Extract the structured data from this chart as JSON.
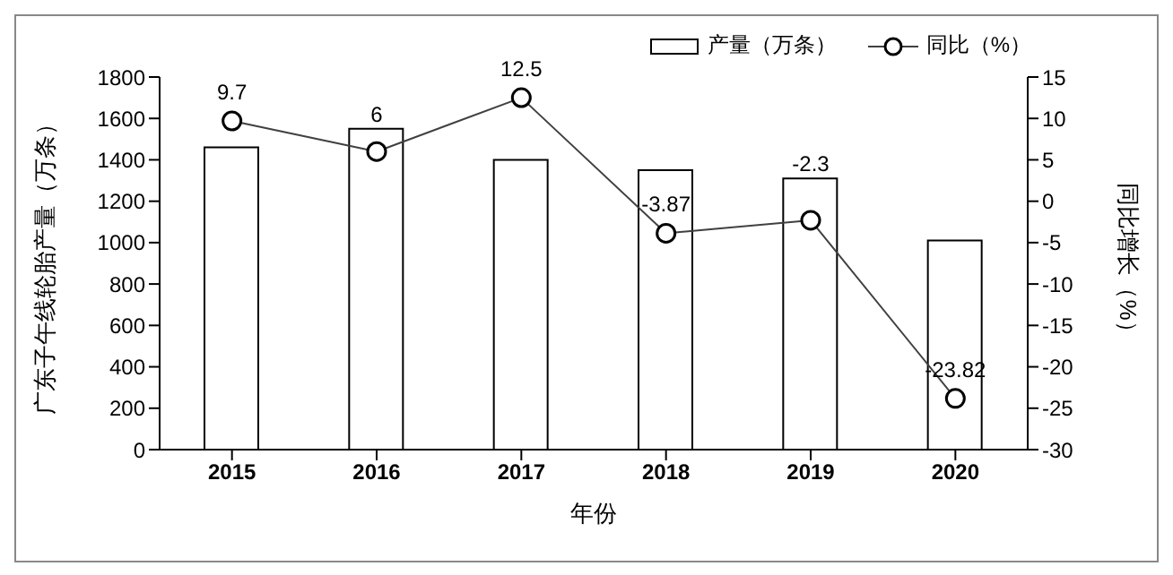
{
  "chart_data": {
    "type": "bar",
    "categories": [
      "2015",
      "2016",
      "2017",
      "2018",
      "2019",
      "2020"
    ],
    "xlabel": "年份",
    "ylabel": "广东子午线轮胎产量（万条）",
    "y2label": "同比增长（%）",
    "series": [
      {
        "name": "产量（万条）",
        "color": "#ffffff",
        "values": [
          1460,
          1550,
          1400,
          1350,
          1310,
          1010
        ]
      },
      {
        "name": "同比（%）",
        "type": "line",
        "axis": "y2",
        "color": "#404040",
        "marker": "circle",
        "values": [
          9.7,
          6,
          12.5,
          -3.87,
          -2.3,
          -23.82
        ],
        "value_labels": [
          "9.7",
          "6",
          "12.5",
          "-3.87",
          "-2.3",
          "-23.82"
        ]
      }
    ],
    "ylim": [
      0,
      1800
    ],
    "yticks": [
      0,
      200,
      400,
      600,
      800,
      1000,
      1200,
      1400,
      1600,
      1800
    ],
    "y2lim": [
      -30,
      15
    ],
    "y2ticks": [
      -30,
      -25,
      -20,
      -15,
      -10,
      -5,
      0,
      5,
      10,
      15
    ],
    "grid": false,
    "legend": "top right"
  }
}
